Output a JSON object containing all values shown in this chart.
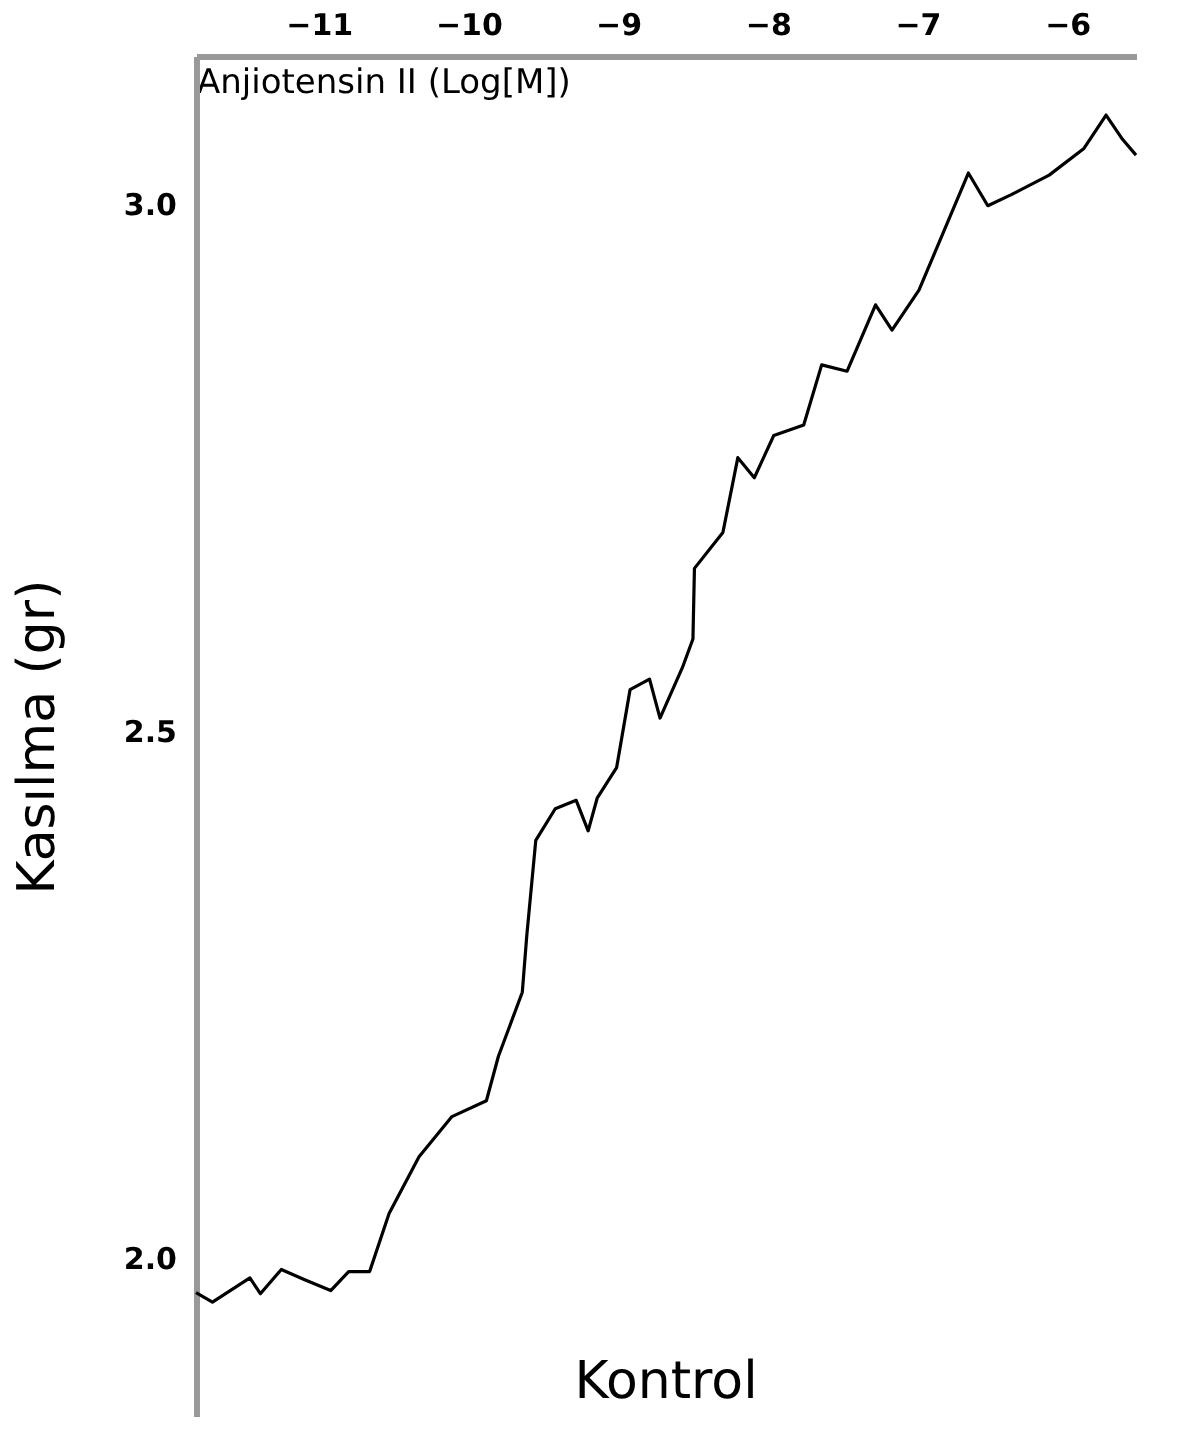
{
  "chart_data": {
    "type": "line",
    "xlabel": "Anjiotensin II (Log[M])",
    "ylabel": "Kasılma (gr)",
    "annotations": [
      "Kontrol"
    ],
    "xlim": [
      -11.82,
      -5.54
    ],
    "xticks": [
      -11,
      -10,
      -9,
      -8,
      -7,
      -6
    ],
    "ylim": [
      1.85,
      3.14
    ],
    "yticks": [
      {
        "value": 2,
        "label": "2.0"
      },
      2.5,
      {
        "value": 3,
        "label": "3.0"
      }
    ],
    "grid": false,
    "marker": "none",
    "line_style": "solid",
    "series": [
      {
        "color": "#000000",
        "x": [
          -11.82,
          -11.71,
          -11.46,
          -11.39,
          -11.25,
          -11.09,
          -10.92,
          -10.8,
          -10.66,
          -10.53,
          -10.33,
          -10.11,
          -9.88,
          -9.8,
          -9.64,
          -9.61,
          -9.55,
          -9.42,
          -9.28,
          -9.2,
          -9.14,
          -9.01,
          -8.92,
          -8.79,
          -8.72,
          -8.57,
          -8.5,
          -8.49,
          -8.3,
          -8.2,
          -8.09,
          -7.96,
          -7.76,
          -7.64,
          -7.47,
          -7.28,
          -7.17,
          -6.99,
          -6.82,
          -6.66,
          -6.53,
          -6.38,
          -6.12,
          -5.89,
          -5.74,
          -5.63,
          -5.54
        ],
        "values": [
          1.967,
          1.958,
          1.981,
          1.966,
          1.989,
          1.979,
          1.969,
          1.987,
          1.987,
          2.042,
          2.096,
          2.134,
          2.149,
          2.191,
          2.252,
          2.306,
          2.396,
          2.426,
          2.434,
          2.405,
          2.436,
          2.465,
          2.539,
          2.549,
          2.512,
          2.56,
          2.587,
          2.654,
          2.688,
          2.759,
          2.74,
          2.78,
          2.79,
          2.847,
          2.841,
          2.904,
          2.88,
          2.918,
          2.975,
          3.029,
          2.998,
          3.008,
          3.027,
          3.052,
          3.084,
          3.061,
          3.046
        ]
      }
    ]
  }
}
